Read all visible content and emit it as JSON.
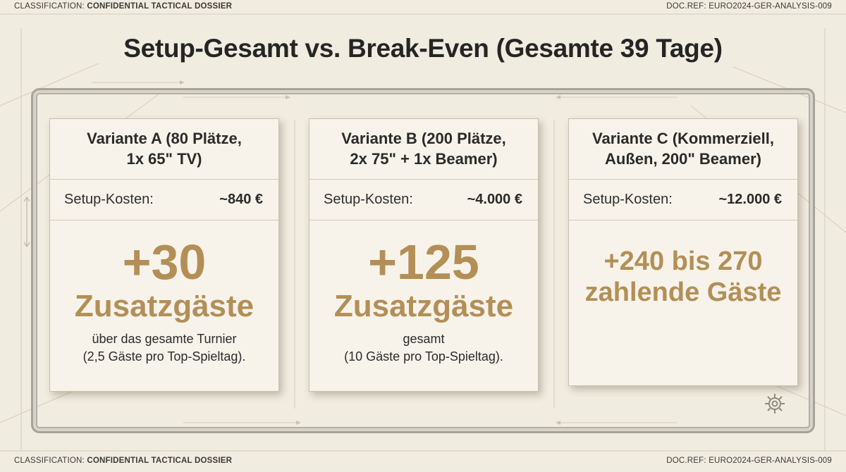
{
  "meta": {
    "classification_label": "CLASSIFICATION:",
    "classification_value": "CONFIDENTIAL TACTICAL DOSSIER",
    "docref_label": "DOC.REF:",
    "docref_value": "EURO2024-GER-ANALYSIS-009"
  },
  "title": "Setup-Gesamt vs. Break-Even (Gesamte 39 Tage)",
  "cards": [
    {
      "title_line1": "Variante A (80 Plätze,",
      "title_line2": "1x 65\" TV)",
      "cost_label": "Setup-Kosten:",
      "cost_value": "~840 €",
      "big_value": "+30",
      "big_label": "Zusatzgäste",
      "note_line1": "über das gesamte Turnier",
      "note_line2": "(2,5 Gäste pro Top-Spieltag)."
    },
    {
      "title_line1": "Variante B (200 Plätze,",
      "title_line2": "2x 75\" + 1x Beamer)",
      "cost_label": "Setup-Kosten:",
      "cost_value": "~4.000 €",
      "big_value": "+125",
      "big_label": "Zusatzgäste",
      "note_line1": "gesamt",
      "note_line2": "(10 Gäste pro Top-Spieltag)."
    },
    {
      "title_line1": "Variante C (Kommerziell,",
      "title_line2": "Außen, 200\" Beamer)",
      "cost_label": "Setup-Kosten:",
      "cost_value": "~12.000 €",
      "range_line1": "+240 bis 270",
      "range_line2": "zahlende Gäste"
    }
  ],
  "colors": {
    "background": "#f1ece0",
    "accent_gold": "#b38f57",
    "text_dark": "#2a2a2a"
  },
  "icons": {
    "corner": "gear-icon"
  }
}
